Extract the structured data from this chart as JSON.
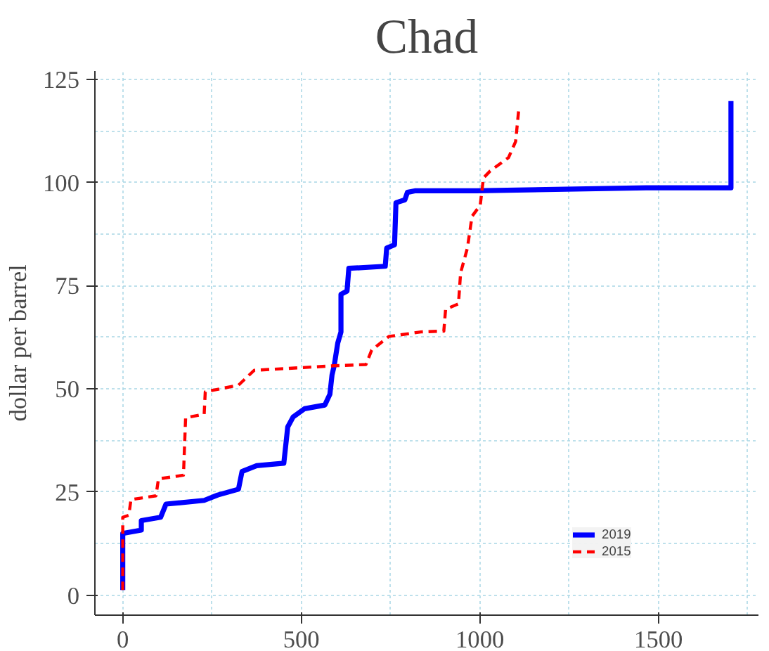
{
  "chart_data": {
    "type": "line",
    "title": "Chad",
    "ylabel": "dollar per barrel",
    "xlim": [
      -78,
      1780
    ],
    "ylim": [
      -4.8,
      127
    ],
    "xticks": [
      0,
      500,
      1000,
      1500
    ],
    "yticks": [
      0,
      25,
      50,
      75,
      100,
      125
    ],
    "grid": true,
    "legend": "bottom right",
    "series": [
      {
        "name": "2019",
        "color": "#0000ff",
        "line_style": "solid",
        "x": [
          0,
          0,
          52,
          52,
          106,
          121,
          228,
          266,
          324,
          334,
          375,
          451,
          462,
          477,
          509,
          566,
          580,
          586,
          592,
          602,
          611,
          611,
          628,
          633,
          735,
          739,
          761,
          765,
          790,
          797,
          820,
          991,
          1465,
          1703,
          1703
        ],
        "values": [
          1.3,
          15.0,
          15.8,
          18.1,
          18.9,
          22.1,
          23.0,
          24.3,
          25.7,
          30.0,
          31.4,
          32.0,
          40.8,
          43.2,
          45.2,
          46.1,
          48.7,
          53.4,
          55.6,
          61.1,
          63.8,
          72.9,
          73.7,
          79.2,
          79.7,
          84.1,
          84.9,
          95.1,
          95.8,
          97.6,
          98.0,
          98.0,
          98.7,
          98.7,
          119.7
        ]
      },
      {
        "name": "2015",
        "color": "#ff0000",
        "line_style": "dashed",
        "x": [
          0,
          0,
          17,
          23,
          93,
          100,
          170,
          176,
          228,
          231,
          324,
          368,
          592,
          681,
          697,
          745,
          835,
          899,
          904,
          940,
          946,
          965,
          978,
          1001,
          1010,
          1029,
          1080,
          1100,
          1109
        ],
        "values": [
          1.3,
          18.9,
          19.4,
          23.2,
          24.1,
          28.2,
          29.1,
          43.0,
          43.9,
          49.3,
          50.9,
          54.5,
          55.6,
          55.9,
          59.4,
          62.7,
          63.8,
          64.0,
          69.3,
          70.6,
          78.1,
          84.1,
          91.8,
          94.5,
          101.1,
          102.8,
          106.0,
          109.9,
          117.8
        ]
      }
    ]
  }
}
